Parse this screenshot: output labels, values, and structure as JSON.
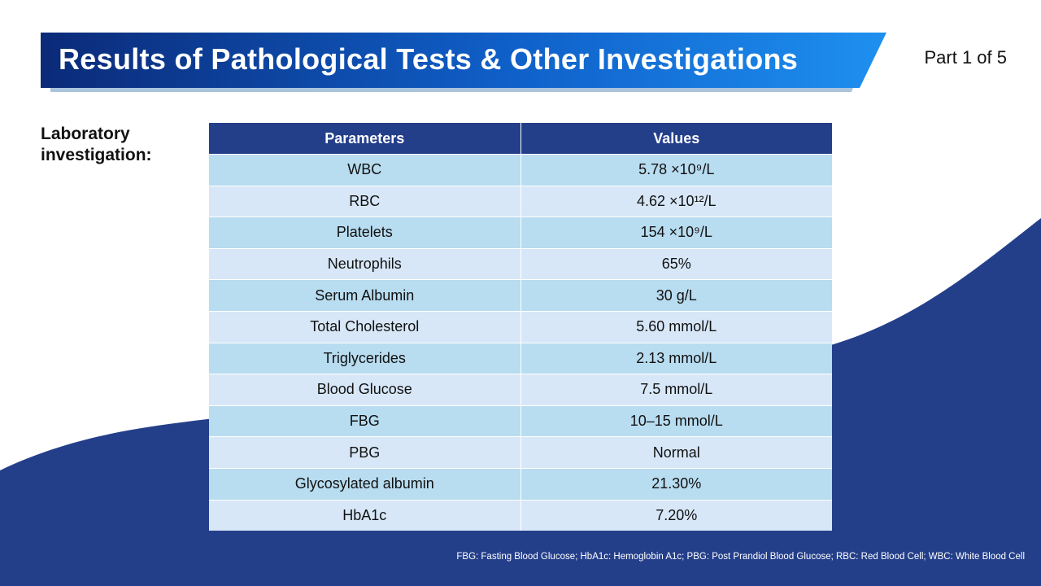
{
  "header": {
    "title": "Results of Pathological Tests & Other Investigations",
    "part_label": "Part 1 of 5"
  },
  "section": {
    "label_line1": "Laboratory",
    "label_line2": "investigation:"
  },
  "table": {
    "columns": [
      "Parameters",
      "Values"
    ],
    "rows": [
      {
        "parameter": "WBC",
        "value": "5.78 ×10⁹/L"
      },
      {
        "parameter": "RBC",
        "value": "4.62 ×10¹²/L"
      },
      {
        "parameter": "Platelets",
        "value": "154 ×10⁹/L"
      },
      {
        "parameter": "Neutrophils",
        "value": "65%"
      },
      {
        "parameter": "Serum Albumin",
        "value": "30 g/L"
      },
      {
        "parameter": "Total Cholesterol",
        "value": "5.60 mmol/L"
      },
      {
        "parameter": "Triglycerides",
        "value": "2.13 mmol/L"
      },
      {
        "parameter": "Blood Glucose",
        "value": "7.5 mmol/L"
      },
      {
        "parameter": "FBG",
        "value": "10–15 mmol/L"
      },
      {
        "parameter": "PBG",
        "value": "Normal"
      },
      {
        "parameter": "Glycosylated albumin",
        "value": "21.30%"
      },
      {
        "parameter": "HbA1c",
        "value": "7.20%"
      }
    ]
  },
  "footnote": "FBG: Fasting Blood Glucose; HbA1c: Hemoglobin A1c; PBG: Post Prandiol Blood Glucose; RBC: Red Blood Cell; WBC: White Blood Cell",
  "colors": {
    "banner_dark": "#0b2a78",
    "banner_light": "#1e90f0",
    "wave": "#243f8a",
    "table_header": "#243f8a",
    "row_odd": "#b8dcf0",
    "row_even": "#d7e7f8"
  }
}
